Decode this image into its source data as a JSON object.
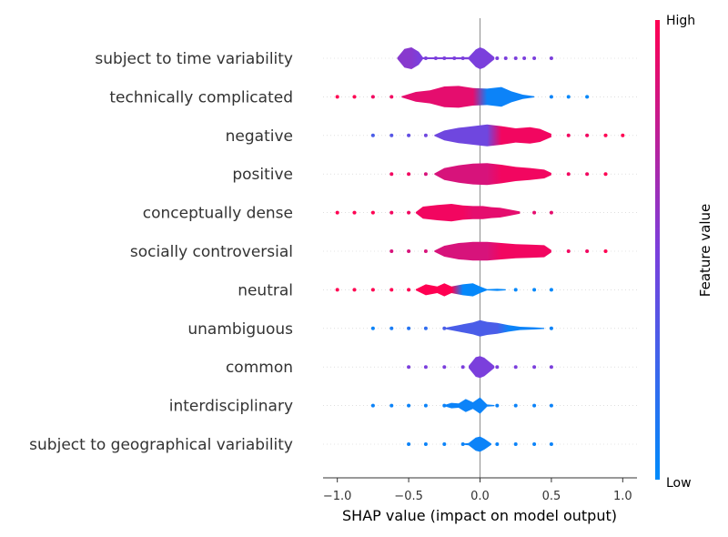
{
  "chart_data": {
    "type": "violin",
    "xlabel": "SHAP value (impact on model output)",
    "xlim": [
      -1.1,
      1.1
    ],
    "xticks": [
      -1.0,
      -0.5,
      0.0,
      0.5,
      1.0
    ],
    "xtick_labels": [
      "−1.0",
      "−0.5",
      "0.0",
      "0.5",
      "1.0"
    ],
    "colorbar": {
      "label": "Feature value",
      "high_label": "High",
      "low_label": "Low",
      "low_color": "#008bfb",
      "high_color": "#ff0052"
    },
    "features": [
      {
        "name": "subject to time variability",
        "points": [
          [
            -0.5,
            0.55
          ],
          [
            -0.38,
            0.5
          ],
          [
            -0.31,
            0.5
          ],
          [
            -0.25,
            0.5
          ],
          [
            -0.18,
            0.5
          ],
          [
            -0.12,
            0.5
          ],
          [
            -0.06,
            0.5
          ],
          [
            0.0,
            0.5
          ],
          [
            0.06,
            0.5
          ],
          [
            0.12,
            0.5
          ],
          [
            0.18,
            0.5
          ],
          [
            0.25,
            0.5
          ],
          [
            0.31,
            0.5
          ],
          [
            0.38,
            0.5
          ],
          [
            0.5,
            0.5
          ]
        ],
        "density": [
          [
            -0.58,
            0.05
          ],
          [
            -0.53,
            0.85
          ],
          [
            -0.48,
            1.0
          ],
          [
            -0.43,
            0.6
          ],
          [
            -0.4,
            0.08
          ],
          [
            -0.08,
            0.1
          ],
          [
            -0.03,
            0.8
          ],
          [
            0.0,
            1.0
          ],
          [
            0.03,
            0.85
          ],
          [
            0.1,
            0.1
          ]
        ]
      },
      {
        "name": "technically complicated",
        "points": [
          [
            -1.0,
            1.0
          ],
          [
            -0.88,
            1.0
          ],
          [
            -0.75,
            0.95
          ],
          [
            -0.62,
            0.95
          ],
          [
            -0.5,
            0.9
          ],
          [
            0.5,
            0.05
          ],
          [
            0.62,
            0.02
          ],
          [
            0.75,
            0.02
          ]
        ],
        "density": [
          [
            -0.55,
            0.05
          ],
          [
            -0.45,
            0.45
          ],
          [
            -0.35,
            0.6
          ],
          [
            -0.25,
            0.95
          ],
          [
            -0.15,
            1.0
          ],
          [
            -0.05,
            0.8
          ],
          [
            0.05,
            0.75
          ],
          [
            0.15,
            0.9
          ],
          [
            0.22,
            0.5
          ],
          [
            0.3,
            0.2
          ],
          [
            0.38,
            0.05
          ]
        ]
      },
      {
        "name": "negative",
        "points": [
          [
            -0.75,
            0.3
          ],
          [
            -0.62,
            0.35
          ],
          [
            -0.5,
            0.4
          ],
          [
            -0.38,
            0.45
          ],
          [
            0.62,
            0.95
          ],
          [
            0.75,
            0.95
          ],
          [
            0.88,
            1.0
          ],
          [
            1.0,
            1.0
          ]
        ],
        "density": [
          [
            -0.32,
            0.05
          ],
          [
            -0.25,
            0.45
          ],
          [
            -0.15,
            0.7
          ],
          [
            -0.05,
            0.85
          ],
          [
            0.05,
            1.0
          ],
          [
            0.15,
            0.85
          ],
          [
            0.25,
            0.65
          ],
          [
            0.35,
            0.75
          ],
          [
            0.42,
            0.6
          ],
          [
            0.5,
            0.15
          ]
        ]
      },
      {
        "name": "positive",
        "points": [
          [
            -0.62,
            0.95
          ],
          [
            -0.5,
            0.95
          ],
          [
            -0.38,
            0.85
          ],
          [
            0.62,
            0.95
          ],
          [
            0.75,
            0.95
          ],
          [
            0.88,
            1.0
          ]
        ],
        "density": [
          [
            -0.32,
            0.05
          ],
          [
            -0.25,
            0.55
          ],
          [
            -0.15,
            0.8
          ],
          [
            -0.05,
            0.95
          ],
          [
            0.05,
            1.0
          ],
          [
            0.15,
            0.85
          ],
          [
            0.25,
            0.65
          ],
          [
            0.35,
            0.55
          ],
          [
            0.45,
            0.4
          ],
          [
            0.5,
            0.1
          ]
        ]
      },
      {
        "name": "conceptually dense",
        "points": [
          [
            -1.0,
            1.0
          ],
          [
            -0.88,
            1.0
          ],
          [
            -0.75,
            1.0
          ],
          [
            -0.62,
            0.95
          ],
          [
            -0.5,
            0.95
          ],
          [
            0.38,
            0.9
          ],
          [
            0.5,
            0.9
          ]
        ],
        "density": [
          [
            -0.45,
            0.05
          ],
          [
            -0.4,
            0.55
          ],
          [
            -0.3,
            0.7
          ],
          [
            -0.2,
            0.8
          ],
          [
            -0.12,
            0.65
          ],
          [
            -0.05,
            0.6
          ],
          [
            0.02,
            0.6
          ],
          [
            0.08,
            0.5
          ],
          [
            0.14,
            0.45
          ],
          [
            0.2,
            0.3
          ],
          [
            0.28,
            0.1
          ]
        ]
      },
      {
        "name": "socially controversial",
        "points": [
          [
            -0.62,
            0.85
          ],
          [
            -0.5,
            0.85
          ],
          [
            -0.38,
            0.85
          ],
          [
            0.62,
            0.95
          ],
          [
            0.75,
            0.95
          ],
          [
            0.88,
            1.0
          ]
        ],
        "density": [
          [
            -0.32,
            0.05
          ],
          [
            -0.25,
            0.5
          ],
          [
            -0.15,
            0.75
          ],
          [
            -0.05,
            0.85
          ],
          [
            0.05,
            0.85
          ],
          [
            0.15,
            0.75
          ],
          [
            0.25,
            0.65
          ],
          [
            0.35,
            0.6
          ],
          [
            0.45,
            0.55
          ],
          [
            0.5,
            0.1
          ]
        ]
      },
      {
        "name": "neutral",
        "points": [
          [
            -1.0,
            1.0
          ],
          [
            -0.88,
            1.0
          ],
          [
            -0.75,
            1.0
          ],
          [
            -0.62,
            1.0
          ],
          [
            -0.5,
            1.0
          ],
          [
            0.25,
            0.02
          ],
          [
            0.38,
            0.02
          ],
          [
            0.5,
            0.02
          ]
        ],
        "density": [
          [
            -0.45,
            0.05
          ],
          [
            -0.38,
            0.5
          ],
          [
            -0.3,
            0.3
          ],
          [
            -0.25,
            0.6
          ],
          [
            -0.2,
            0.3
          ],
          [
            -0.12,
            0.5
          ],
          [
            -0.05,
            0.6
          ],
          [
            0.0,
            0.3
          ],
          [
            0.05,
            0.05
          ],
          [
            0.12,
            0.1
          ],
          [
            0.18,
            0.05
          ]
        ]
      },
      {
        "name": "unambiguous",
        "points": [
          [
            -0.75,
            0.05
          ],
          [
            -0.62,
            0.1
          ],
          [
            -0.5,
            0.15
          ],
          [
            -0.38,
            0.2
          ],
          [
            -0.25,
            0.3
          ],
          [
            0.5,
            0.05
          ]
        ],
        "density": [
          [
            -0.25,
            0.05
          ],
          [
            -0.15,
            0.3
          ],
          [
            -0.05,
            0.55
          ],
          [
            0.0,
            0.75
          ],
          [
            0.05,
            0.6
          ],
          [
            0.12,
            0.5
          ],
          [
            0.2,
            0.3
          ],
          [
            0.28,
            0.15
          ],
          [
            0.38,
            0.1
          ],
          [
            0.45,
            0.05
          ]
        ]
      },
      {
        "name": "common",
        "points": [
          [
            -0.5,
            0.5
          ],
          [
            -0.38,
            0.5
          ],
          [
            -0.25,
            0.5
          ],
          [
            -0.12,
            0.5
          ],
          [
            0.12,
            0.5
          ],
          [
            0.25,
            0.5
          ],
          [
            0.38,
            0.5
          ],
          [
            0.5,
            0.5
          ]
        ],
        "density": [
          [
            -0.08,
            0.1
          ],
          [
            -0.03,
            0.9
          ],
          [
            0.0,
            1.0
          ],
          [
            0.03,
            0.85
          ],
          [
            0.1,
            0.1
          ]
        ]
      },
      {
        "name": "interdisciplinary",
        "points": [
          [
            -0.75,
            0.05
          ],
          [
            -0.62,
            0.05
          ],
          [
            -0.5,
            0.05
          ],
          [
            -0.38,
            0.05
          ],
          [
            -0.25,
            0.05
          ],
          [
            0.12,
            0.05
          ],
          [
            0.25,
            0.05
          ],
          [
            0.38,
            0.05
          ],
          [
            0.5,
            0.05
          ]
        ],
        "density": [
          [
            -0.25,
            0.05
          ],
          [
            -0.2,
            0.25
          ],
          [
            -0.15,
            0.2
          ],
          [
            -0.1,
            0.6
          ],
          [
            -0.05,
            0.3
          ],
          [
            0.0,
            0.75
          ],
          [
            0.05,
            0.1
          ],
          [
            0.1,
            0.05
          ]
        ]
      },
      {
        "name": "subject to geographical variability",
        "points": [
          [
            -0.5,
            0.05
          ],
          [
            -0.38,
            0.05
          ],
          [
            -0.25,
            0.05
          ],
          [
            -0.12,
            0.05
          ],
          [
            0.12,
            0.05
          ],
          [
            0.25,
            0.05
          ],
          [
            0.38,
            0.05
          ],
          [
            0.5,
            0.05
          ]
        ],
        "density": [
          [
            -0.12,
            0.05
          ],
          [
            -0.08,
            0.1
          ],
          [
            -0.03,
            0.6
          ],
          [
            0.0,
            0.7
          ],
          [
            0.03,
            0.5
          ],
          [
            0.08,
            0.05
          ]
        ]
      }
    ]
  }
}
